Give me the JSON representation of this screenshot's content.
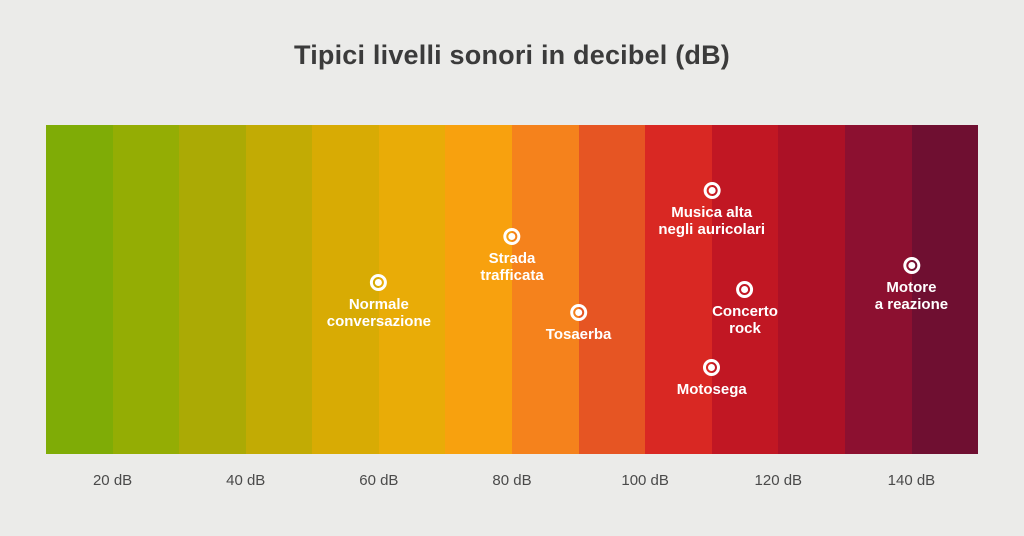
{
  "title": "Tipici livelli sonori in decibel (dB)",
  "colors": {
    "background": "#ebebe9",
    "title_text": "#3b3b3b",
    "tick_text": "#4a4a4a",
    "annotation_text": "#ffffff",
    "marker": "#ffffff"
  },
  "chart_data": {
    "type": "scatter",
    "title": "Tipici livelli sonori in decibel (dB)",
    "xlabel": "dB",
    "x_range": [
      10,
      150
    ],
    "grid": false,
    "legend": "none",
    "x_ticks": [
      {
        "label": "20 dB",
        "value": 20
      },
      {
        "label": "40 dB",
        "value": 40
      },
      {
        "label": "60 dB",
        "value": 60
      },
      {
        "label": "80 dB",
        "value": 80
      },
      {
        "label": "100 dB",
        "value": 100
      },
      {
        "label": "120 dB",
        "value": 120
      },
      {
        "label": "140 dB",
        "value": 140
      }
    ],
    "bands": [
      {
        "range_db": [
          10,
          20
        ],
        "color": "#7fac06"
      },
      {
        "range_db": [
          20,
          30
        ],
        "color": "#94ad04"
      },
      {
        "range_db": [
          30,
          40
        ],
        "color": "#abaa05"
      },
      {
        "range_db": [
          40,
          50
        ],
        "color": "#c2ab04"
      },
      {
        "range_db": [
          50,
          60
        ],
        "color": "#d8ab04"
      },
      {
        "range_db": [
          60,
          70
        ],
        "color": "#e9ac07"
      },
      {
        "range_db": [
          70,
          80
        ],
        "color": "#f8a10e"
      },
      {
        "range_db": [
          80,
          90
        ],
        "color": "#f5821c"
      },
      {
        "range_db": [
          90,
          100
        ],
        "color": "#e65523"
      },
      {
        "range_db": [
          100,
          110
        ],
        "color": "#d92823"
      },
      {
        "range_db": [
          110,
          120
        ],
        "color": "#c11723"
      },
      {
        "range_db": [
          120,
          130
        ],
        "color": "#ac1126"
      },
      {
        "range_db": [
          130,
          140
        ],
        "color": "#8c1030"
      },
      {
        "range_db": [
          140,
          150
        ],
        "color": "#6f0f31"
      }
    ],
    "points": [
      {
        "label": "Normale conversazione",
        "label_lines": [
          "Normale",
          "conversazione"
        ],
        "db": 60,
        "y_pct": 48
      },
      {
        "label": "Strada trafficata",
        "label_lines": [
          "Strada",
          "trafficata"
        ],
        "db": 80,
        "y_pct": 34
      },
      {
        "label": "Tosaerba",
        "label_lines": [
          "Tosaerba"
        ],
        "db": 90,
        "y_pct": 57
      },
      {
        "label": "Musica alta negli auricolari",
        "label_lines": [
          "Musica alta",
          "negli auricolari"
        ],
        "db": 110,
        "y_pct": 20
      },
      {
        "label": "Concerto rock",
        "label_lines": [
          "Concerto",
          "rock"
        ],
        "db": 115,
        "y_pct": 50
      },
      {
        "label": "Motosega",
        "label_lines": [
          "Motosega"
        ],
        "db": 110,
        "y_pct": 74
      },
      {
        "label": "Motore a reazione",
        "label_lines": [
          "Motore",
          "a reazione"
        ],
        "db": 140,
        "y_pct": 43
      }
    ]
  }
}
